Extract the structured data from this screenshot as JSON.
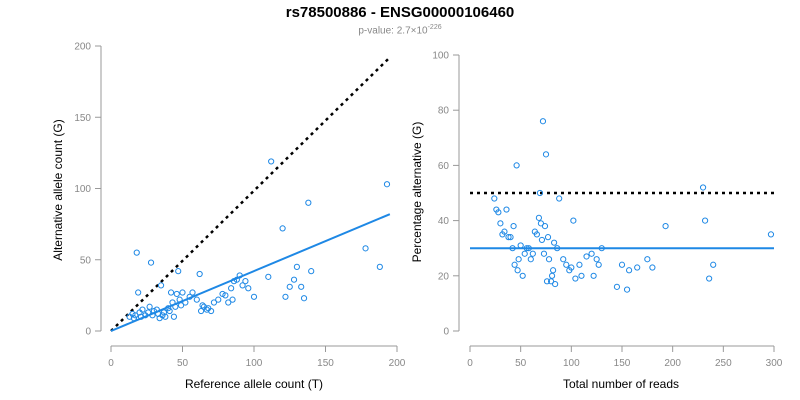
{
  "header": {
    "title": "rs78500886 - ENSG00000106460",
    "pvalue_prefix": "p-value: 2.7×10",
    "pvalue_exponent": "-226"
  },
  "chart_data": [
    {
      "type": "scatter",
      "xlabel": "Reference allele count (T)",
      "ylabel": "Alternative allele count (G)",
      "xlim": [
        0,
        200
      ],
      "ylim": [
        0,
        200
      ],
      "xticks": [
        0,
        50,
        100,
        150,
        200
      ],
      "yticks": [
        0,
        50,
        100,
        150,
        200
      ],
      "grid": false,
      "points": [
        [
          13,
          10
        ],
        [
          15,
          12
        ],
        [
          16,
          9
        ],
        [
          17,
          11
        ],
        [
          18,
          55
        ],
        [
          19,
          27
        ],
        [
          20,
          13
        ],
        [
          21,
          10
        ],
        [
          22,
          15
        ],
        [
          24,
          11
        ],
        [
          26,
          13
        ],
        [
          27,
          17
        ],
        [
          28,
          48
        ],
        [
          29,
          11
        ],
        [
          30,
          14
        ],
        [
          32,
          15
        ],
        [
          33,
          12
        ],
        [
          34,
          9
        ],
        [
          35,
          32
        ],
        [
          36,
          11
        ],
        [
          37,
          13
        ],
        [
          38,
          10
        ],
        [
          40,
          16
        ],
        [
          41,
          14
        ],
        [
          42,
          27
        ],
        [
          43,
          20
        ],
        [
          44,
          10
        ],
        [
          45,
          17
        ],
        [
          46,
          26
        ],
        [
          47,
          42
        ],
        [
          48,
          22
        ],
        [
          49,
          18
        ],
        [
          50,
          27
        ],
        [
          52,
          20
        ],
        [
          55,
          24
        ],
        [
          57,
          27
        ],
        [
          60,
          22
        ],
        [
          62,
          40
        ],
        [
          63,
          14
        ],
        [
          64,
          18
        ],
        [
          65,
          17
        ],
        [
          67,
          15
        ],
        [
          68,
          16
        ],
        [
          70,
          14
        ],
        [
          72,
          20
        ],
        [
          75,
          22
        ],
        [
          78,
          26
        ],
        [
          80,
          25
        ],
        [
          82,
          20
        ],
        [
          84,
          30
        ],
        [
          85,
          22
        ],
        [
          86,
          35
        ],
        [
          88,
          36
        ],
        [
          90,
          39
        ],
        [
          92,
          32
        ],
        [
          94,
          35
        ],
        [
          96,
          30
        ],
        [
          100,
          24
        ],
        [
          110,
          38
        ],
        [
          112,
          119
        ],
        [
          120,
          72
        ],
        [
          122,
          24
        ],
        [
          125,
          31
        ],
        [
          128,
          36
        ],
        [
          130,
          45
        ],
        [
          133,
          31
        ],
        [
          135,
          23
        ],
        [
          138,
          90
        ],
        [
          140,
          42
        ],
        [
          178,
          58
        ],
        [
          188,
          45
        ],
        [
          193,
          103
        ]
      ],
      "fit_line": {
        "x": [
          0,
          195
        ],
        "y": [
          0,
          82
        ]
      },
      "reference_line": {
        "x": [
          0,
          195
        ],
        "y": [
          0,
          192
        ]
      }
    },
    {
      "type": "scatter",
      "xlabel": "Total number of reads",
      "ylabel": "Percentage alternative (G)",
      "xlim": [
        0,
        300
      ],
      "ylim": [
        0,
        100
      ],
      "xticks": [
        0,
        50,
        100,
        150,
        200,
        250,
        300
      ],
      "yticks": [
        0,
        20,
        40,
        60,
        80,
        100
      ],
      "grid": false,
      "points": [
        [
          24,
          48
        ],
        [
          26,
          44
        ],
        [
          28,
          43
        ],
        [
          30,
          39
        ],
        [
          32,
          35
        ],
        [
          34,
          36
        ],
        [
          36,
          44
        ],
        [
          38,
          34
        ],
        [
          40,
          34
        ],
        [
          42,
          30
        ],
        [
          43,
          38
        ],
        [
          44,
          24
        ],
        [
          46,
          60
        ],
        [
          47,
          22
        ],
        [
          48,
          26
        ],
        [
          50,
          31
        ],
        [
          52,
          20
        ],
        [
          54,
          28
        ],
        [
          56,
          30
        ],
        [
          58,
          30
        ],
        [
          60,
          26
        ],
        [
          62,
          28
        ],
        [
          64,
          36
        ],
        [
          66,
          35
        ],
        [
          68,
          41
        ],
        [
          69,
          50
        ],
        [
          70,
          39
        ],
        [
          71,
          33
        ],
        [
          72,
          76
        ],
        [
          73,
          28
        ],
        [
          74,
          38
        ],
        [
          75,
          64
        ],
        [
          76,
          18
        ],
        [
          77,
          34
        ],
        [
          78,
          26
        ],
        [
          80,
          18
        ],
        [
          81,
          20
        ],
        [
          82,
          22
        ],
        [
          83,
          32
        ],
        [
          84,
          17
        ],
        [
          86,
          30
        ],
        [
          88,
          48
        ],
        [
          92,
          26
        ],
        [
          95,
          24
        ],
        [
          98,
          22
        ],
        [
          100,
          23
        ],
        [
          102,
          40
        ],
        [
          104,
          19
        ],
        [
          108,
          24
        ],
        [
          110,
          20
        ],
        [
          115,
          27
        ],
        [
          120,
          28
        ],
        [
          122,
          20
        ],
        [
          125,
          26
        ],
        [
          127,
          24
        ],
        [
          130,
          30
        ],
        [
          145,
          16
        ],
        [
          150,
          24
        ],
        [
          155,
          15
        ],
        [
          157,
          22
        ],
        [
          165,
          23
        ],
        [
          175,
          26
        ],
        [
          180,
          23
        ],
        [
          193,
          38
        ],
        [
          230,
          52
        ],
        [
          232,
          40
        ],
        [
          236,
          19
        ],
        [
          240,
          24
        ],
        [
          297,
          35
        ]
      ],
      "fit_line": {
        "x": [
          0,
          300
        ],
        "y": [
          30,
          30
        ]
      },
      "reference_line": {
        "x": [
          0,
          300
        ],
        "y": [
          50,
          50
        ]
      }
    }
  ]
}
